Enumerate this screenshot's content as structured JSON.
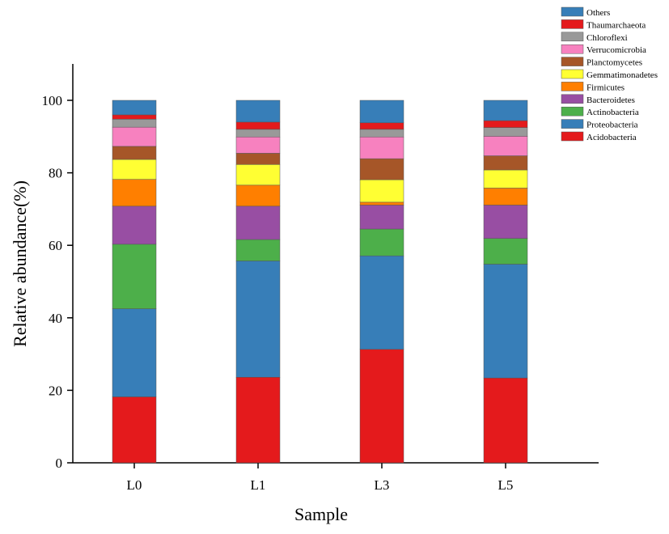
{
  "chart_data": {
    "type": "bar",
    "stacked": true,
    "categories": [
      "L0",
      "L1",
      "L3",
      "L5"
    ],
    "xlabel": "Sample",
    "ylabel": "Relative abundance(%)",
    "ylim": [
      0,
      110
    ],
    "yticks": [
      0,
      20,
      40,
      60,
      80,
      100
    ],
    "grid": false,
    "legend_position": "top-right",
    "series": [
      {
        "name": "Acidobacteria",
        "color": "#e41a1c",
        "values": [
          18.2,
          23.6,
          31.3,
          23.4
        ]
      },
      {
        "name": "Proteobacteria",
        "color": "#377eb8",
        "values": [
          24.3,
          32.1,
          25.8,
          31.4
        ]
      },
      {
        "name": "Actinobacteria",
        "color": "#4daf4a",
        "values": [
          17.8,
          5.9,
          7.4,
          7.1
        ]
      },
      {
        "name": "Bacteroidetes",
        "color": "#984ea3",
        "values": [
          10.5,
          9.2,
          6.6,
          9.2
        ]
      },
      {
        "name": "Firmicutes",
        "color": "#ff7f00",
        "values": [
          7.4,
          5.8,
          0.8,
          4.7
        ]
      },
      {
        "name": "Gemmatimonadetes",
        "color": "#ffff33",
        "values": [
          5.5,
          5.7,
          6.2,
          5.0
        ]
      },
      {
        "name": "Planctomycetes",
        "color": "#a65628",
        "values": [
          3.6,
          3.1,
          5.8,
          3.9
        ]
      },
      {
        "name": "Verrucomicrobia",
        "color": "#f781bf",
        "values": [
          5.3,
          4.5,
          6.0,
          5.4
        ]
      },
      {
        "name": "Chloroflexi",
        "color": "#999999",
        "values": [
          2.2,
          2.1,
          2.1,
          2.4
        ]
      },
      {
        "name": "Thaumarchaeota",
        "color": "#e41a1c",
        "values": [
          1.2,
          2.0,
          1.8,
          1.9
        ]
      },
      {
        "name": "Others",
        "color": "#377eb8",
        "values": [
          4.0,
          6.0,
          6.2,
          5.6
        ]
      }
    ]
  }
}
